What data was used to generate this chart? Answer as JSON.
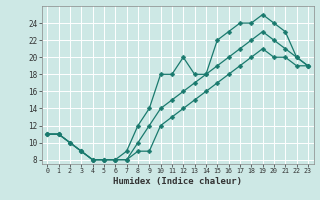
{
  "xlabel": "Humidex (Indice chaleur)",
  "x_values": [
    0,
    1,
    2,
    3,
    4,
    5,
    6,
    7,
    8,
    9,
    10,
    11,
    12,
    13,
    14,
    15,
    16,
    17,
    18,
    19,
    20,
    21,
    22,
    23
  ],
  "line_top": [
    11,
    11,
    10,
    9,
    8,
    8,
    8,
    9,
    12,
    14,
    18,
    18,
    20,
    18,
    18,
    22,
    23,
    24,
    24,
    25,
    24,
    23,
    20,
    19
  ],
  "line_mid": [
    11,
    11,
    10,
    9,
    8,
    8,
    8,
    8,
    10,
    12,
    14,
    15,
    16,
    17,
    18,
    19,
    20,
    21,
    22,
    23,
    22,
    21,
    20,
    19
  ],
  "line_bot": [
    11,
    11,
    10,
    9,
    8,
    8,
    8,
    8,
    9,
    9,
    12,
    13,
    14,
    15,
    16,
    17,
    18,
    19,
    20,
    21,
    20,
    20,
    19,
    19
  ],
  "line_color": "#1a7a6e",
  "bg_color": "#cde8e5",
  "grid_color": "#ffffff",
  "xlim": [
    -0.5,
    23.5
  ],
  "ylim": [
    7.5,
    26
  ],
  "yticks": [
    8,
    10,
    12,
    14,
    16,
    18,
    20,
    22,
    24
  ],
  "xticks": [
    0,
    1,
    2,
    3,
    4,
    5,
    6,
    7,
    8,
    9,
    10,
    11,
    12,
    13,
    14,
    15,
    16,
    17,
    18,
    19,
    20,
    21,
    22,
    23
  ],
  "markersize": 2.5,
  "linewidth": 0.9
}
